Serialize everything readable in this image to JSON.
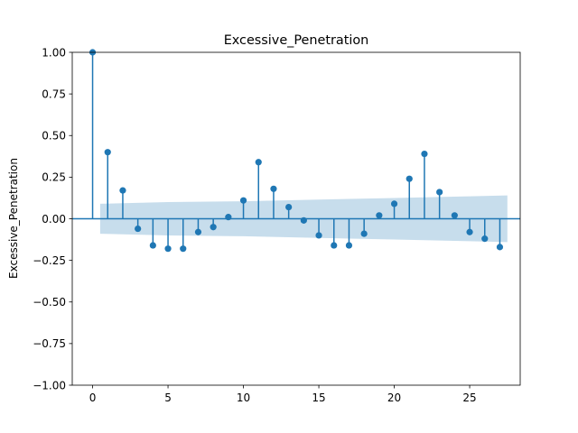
{
  "chart_data": {
    "type": "stem",
    "title": "Excessive_Penetration",
    "xlabel": "",
    "ylabel": "Excessive_Penetration",
    "xlim": [
      -1.35,
      28.35
    ],
    "ylim": [
      -1.0,
      1.0
    ],
    "xticks": [
      0,
      5,
      10,
      15,
      20,
      25
    ],
    "yticks": [
      -1.0,
      -0.75,
      -0.5,
      -0.25,
      0.0,
      0.25,
      0.5,
      0.75,
      1.0
    ],
    "ytick_labels": [
      "−1.00",
      "−0.75",
      "−0.50",
      "−0.25",
      "0.00",
      "0.25",
      "0.50",
      "0.75",
      "1.00"
    ],
    "xtick_labels": [
      "0",
      "5",
      "10",
      "15",
      "20",
      "25"
    ],
    "grid": false,
    "lags": [
      0,
      1,
      2,
      3,
      4,
      5,
      6,
      7,
      8,
      9,
      10,
      11,
      12,
      13,
      14,
      15,
      16,
      17,
      18,
      19,
      20,
      21,
      22,
      23,
      24,
      25,
      26,
      27
    ],
    "values": [
      1.0,
      0.4,
      0.17,
      -0.06,
      -0.16,
      -0.18,
      -0.18,
      -0.08,
      -0.05,
      0.01,
      0.11,
      0.34,
      0.18,
      0.07,
      -0.01,
      -0.1,
      -0.16,
      -0.16,
      -0.09,
      0.02,
      0.09,
      0.24,
      0.39,
      0.16,
      0.02,
      -0.08,
      -0.12,
      -0.17
    ],
    "confidence_band": {
      "x": [
        0.5,
        5,
        10,
        15,
        20,
        25,
        27.5
      ],
      "upper": [
        0.09,
        0.1,
        0.105,
        0.115,
        0.125,
        0.135,
        0.14
      ],
      "lower": [
        -0.09,
        -0.1,
        -0.105,
        -0.115,
        -0.125,
        -0.135,
        -0.14
      ]
    },
    "colors": {
      "stem": "#1f77b4",
      "band": "#1f77b4",
      "axes": "#000000"
    }
  }
}
